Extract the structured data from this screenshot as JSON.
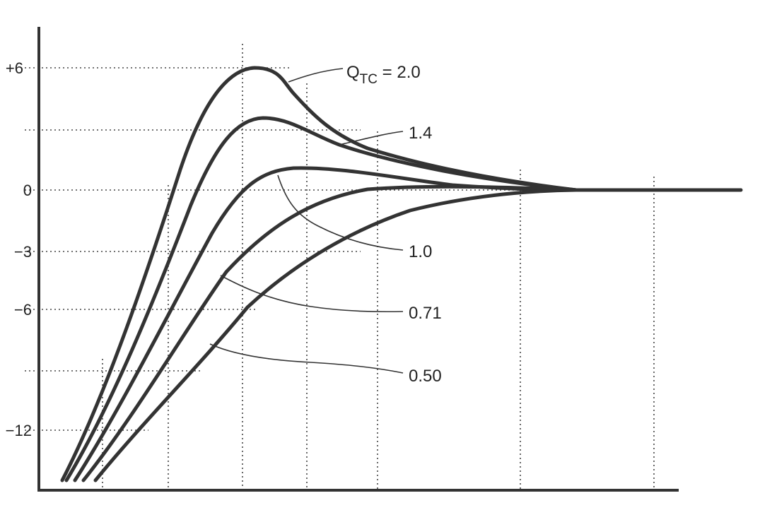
{
  "chart_data": {
    "type": "line",
    "title": "",
    "xlabel": "",
    "ylabel": "",
    "y_ticks": [
      {
        "value": 6,
        "label": "+6"
      },
      {
        "value": 0,
        "label": "0"
      },
      {
        "value": -3,
        "label": "−3"
      },
      {
        "value": -6,
        "label": "−6"
      },
      {
        "value": -12,
        "label": "−12"
      }
    ],
    "ylim": [
      -14.5,
      8.5
    ],
    "xlim": [
      0,
      100
    ],
    "x_scale": "log",
    "grid": true,
    "legend": "none",
    "label_prefix": "Q",
    "label_subscript": "TC",
    "series": [
      {
        "label": "2.0",
        "x": [
          3.2,
          6,
          10,
          15,
          21,
          26,
          32,
          40,
          50,
          63,
          80,
          100
        ],
        "y": [
          -14.5,
          -8,
          -3,
          3,
          5.8,
          6,
          4.5,
          3.0,
          1.5,
          0.7,
          0.2,
          0
        ]
      },
      {
        "label": "1.4",
        "x": [
          3.2,
          6,
          10,
          15,
          21,
          26,
          32,
          40,
          50,
          63,
          80,
          100
        ],
        "y": [
          -14.5,
          -9,
          -4.5,
          0,
          2.8,
          3.5,
          2.8,
          1.8,
          1.0,
          0.4,
          0.1,
          0
        ]
      },
      {
        "label": "1.0",
        "x": [
          3.5,
          6,
          10,
          15,
          21,
          26,
          32,
          40,
          50,
          63,
          80,
          100
        ],
        "y": [
          -14.5,
          -11,
          -6.5,
          -3,
          -0.5,
          0.8,
          1.0,
          0.8,
          0.5,
          0.2,
          0.05,
          0
        ]
      },
      {
        "label": "0.71",
        "x": [
          3.8,
          6,
          10,
          15,
          21,
          26,
          32,
          40,
          50,
          63,
          80,
          100
        ],
        "y": [
          -14.5,
          -12,
          -8.5,
          -5.5,
          -3,
          -1.5,
          -0.5,
          0,
          0.1,
          0.1,
          0.05,
          0
        ]
      },
      {
        "label": "0.50",
        "x": [
          4.5,
          6,
          10,
          15,
          21,
          26,
          32,
          40,
          50,
          63,
          80,
          100
        ],
        "y": [
          -14.5,
          -13.5,
          -10.5,
          -7.8,
          -5.5,
          -4,
          -2.8,
          -1.8,
          -1.0,
          -0.5,
          -0.1,
          0
        ]
      }
    ]
  }
}
